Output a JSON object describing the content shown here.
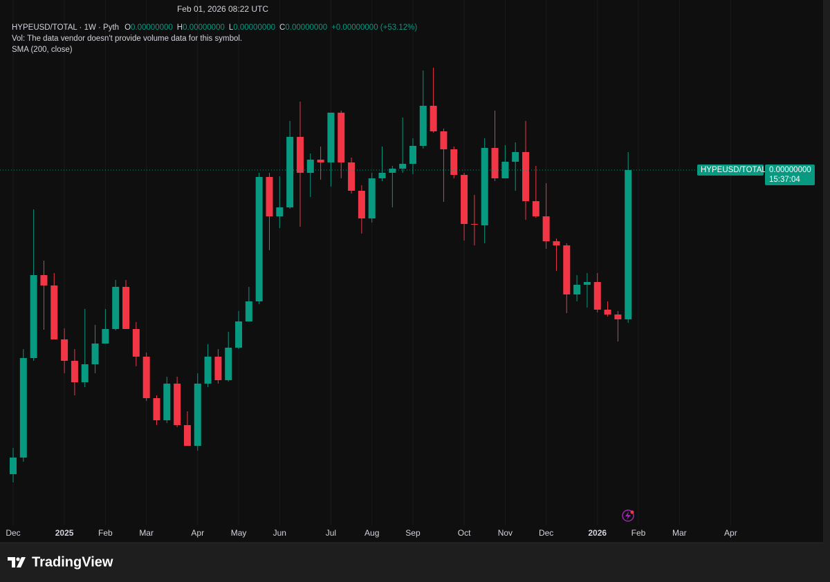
{
  "chart_data": {
    "type": "candlestick",
    "header_time": "Feb 01, 2026 08:22 UTC",
    "legend": {
      "symbol": "HYPEUSD/TOTAL · 1W · Pyth",
      "fields": [
        {
          "key": "O",
          "value": "0.00000000"
        },
        {
          "key": "H",
          "value": "0.00000000"
        },
        {
          "key": "L",
          "value": "0.00000000"
        },
        {
          "key": "C",
          "value": "0.00000000"
        }
      ],
      "change": "+0.00000000 (+53.12%)",
      "volume_note": "Vol: The data vendor doesn't provide volume data for this symbol.",
      "indicator": "SMA (200, close)"
    },
    "price_label": {
      "symbol": "HYPEUSD/TOTAL",
      "price": "0.00000000",
      "countdown": "15:37:04"
    },
    "brand": "TradingView",
    "up_color": "#089981",
    "down_color": "#f23645",
    "ylim": [
      0,
      740
    ],
    "categories": [
      "Dec",
      null,
      null,
      null,
      null,
      "2025",
      null,
      null,
      null,
      "Feb",
      null,
      null,
      null,
      "Mar",
      null,
      null,
      null,
      null,
      "Apr",
      null,
      null,
      null,
      "May",
      null,
      null,
      null,
      "Jun",
      null,
      null,
      null,
      null,
      "Jul",
      null,
      null,
      null,
      "Aug",
      null,
      null,
      null,
      "Sep",
      null,
      null,
      null,
      null,
      "Oct",
      null,
      null,
      null,
      "Nov",
      null,
      null,
      null,
      "Dec",
      null,
      null,
      null,
      null,
      "2026",
      null,
      null,
      null,
      "Feb",
      null,
      null,
      null,
      "Mar",
      null,
      null,
      null,
      null,
      "Apr"
    ],
    "open": [
      54,
      78,
      222,
      342,
      327,
      249,
      218,
      187,
      213,
      243,
      264,
      325,
      264,
      224,
      164,
      132,
      185,
      125,
      95,
      185,
      224,
      190,
      237,
      275,
      304,
      484,
      427,
      440,
      542,
      490,
      509,
      505,
      577,
      505,
      464,
      424,
      482,
      490,
      496,
      503,
      529,
      587,
      550,
      524,
      487,
      416,
      414,
      526,
      482,
      506,
      520,
      449,
      427,
      391,
      385,
      314,
      328,
      332,
      292,
      285,
      278,
      null,
      null,
      null,
      null,
      null,
      null,
      null,
      null,
      null,
      null
    ],
    "high": [
      92,
      235,
      437,
      363,
      345,
      265,
      235,
      293,
      270,
      293,
      335,
      335,
      274,
      230,
      168,
      195,
      195,
      145,
      200,
      242,
      235,
      260,
      290,
      325,
      490,
      490,
      485,
      565,
      593,
      518,
      528,
      577,
      580,
      512,
      472,
      490,
      528,
      500,
      570,
      540,
      638,
      642,
      554,
      528,
      490,
      458,
      540,
      580,
      530,
      534,
      565,
      500,
      475,
      395,
      388,
      342,
      345,
      345,
      304,
      290,
      520,
      null,
      null,
      null,
      null,
      null,
      null,
      null,
      null,
      null,
      null
    ],
    "low": [
      42,
      72,
      218,
      263,
      249,
      200,
      168,
      180,
      200,
      243,
      262,
      264,
      210,
      160,
      125,
      128,
      122,
      95,
      88,
      180,
      185,
      188,
      235,
      275,
      300,
      378,
      410,
      438,
      412,
      455,
      480,
      470,
      482,
      460,
      402,
      418,
      478,
      440,
      490,
      488,
      525,
      548,
      448,
      482,
      392,
      385,
      388,
      478,
      482,
      464,
      422,
      425,
      380,
      348,
      287,
      304,
      295,
      288,
      282,
      246,
      273,
      null,
      null,
      null,
      null,
      null,
      null,
      null,
      null,
      null,
      null
    ],
    "close": [
      78,
      222,
      342,
      327,
      249,
      218,
      187,
      213,
      243,
      264,
      325,
      264,
      224,
      164,
      132,
      185,
      125,
      95,
      185,
      224,
      190,
      237,
      275,
      304,
      484,
      427,
      440,
      542,
      490,
      509,
      505,
      577,
      505,
      464,
      424,
      482,
      490,
      496,
      503,
      529,
      587,
      550,
      524,
      487,
      416,
      415,
      526,
      482,
      506,
      520,
      449,
      427,
      391,
      385,
      314,
      328,
      332,
      292,
      285,
      278,
      494,
      null,
      null,
      null,
      null,
      null,
      null,
      null,
      null,
      null,
      null
    ],
    "grid": true
  }
}
